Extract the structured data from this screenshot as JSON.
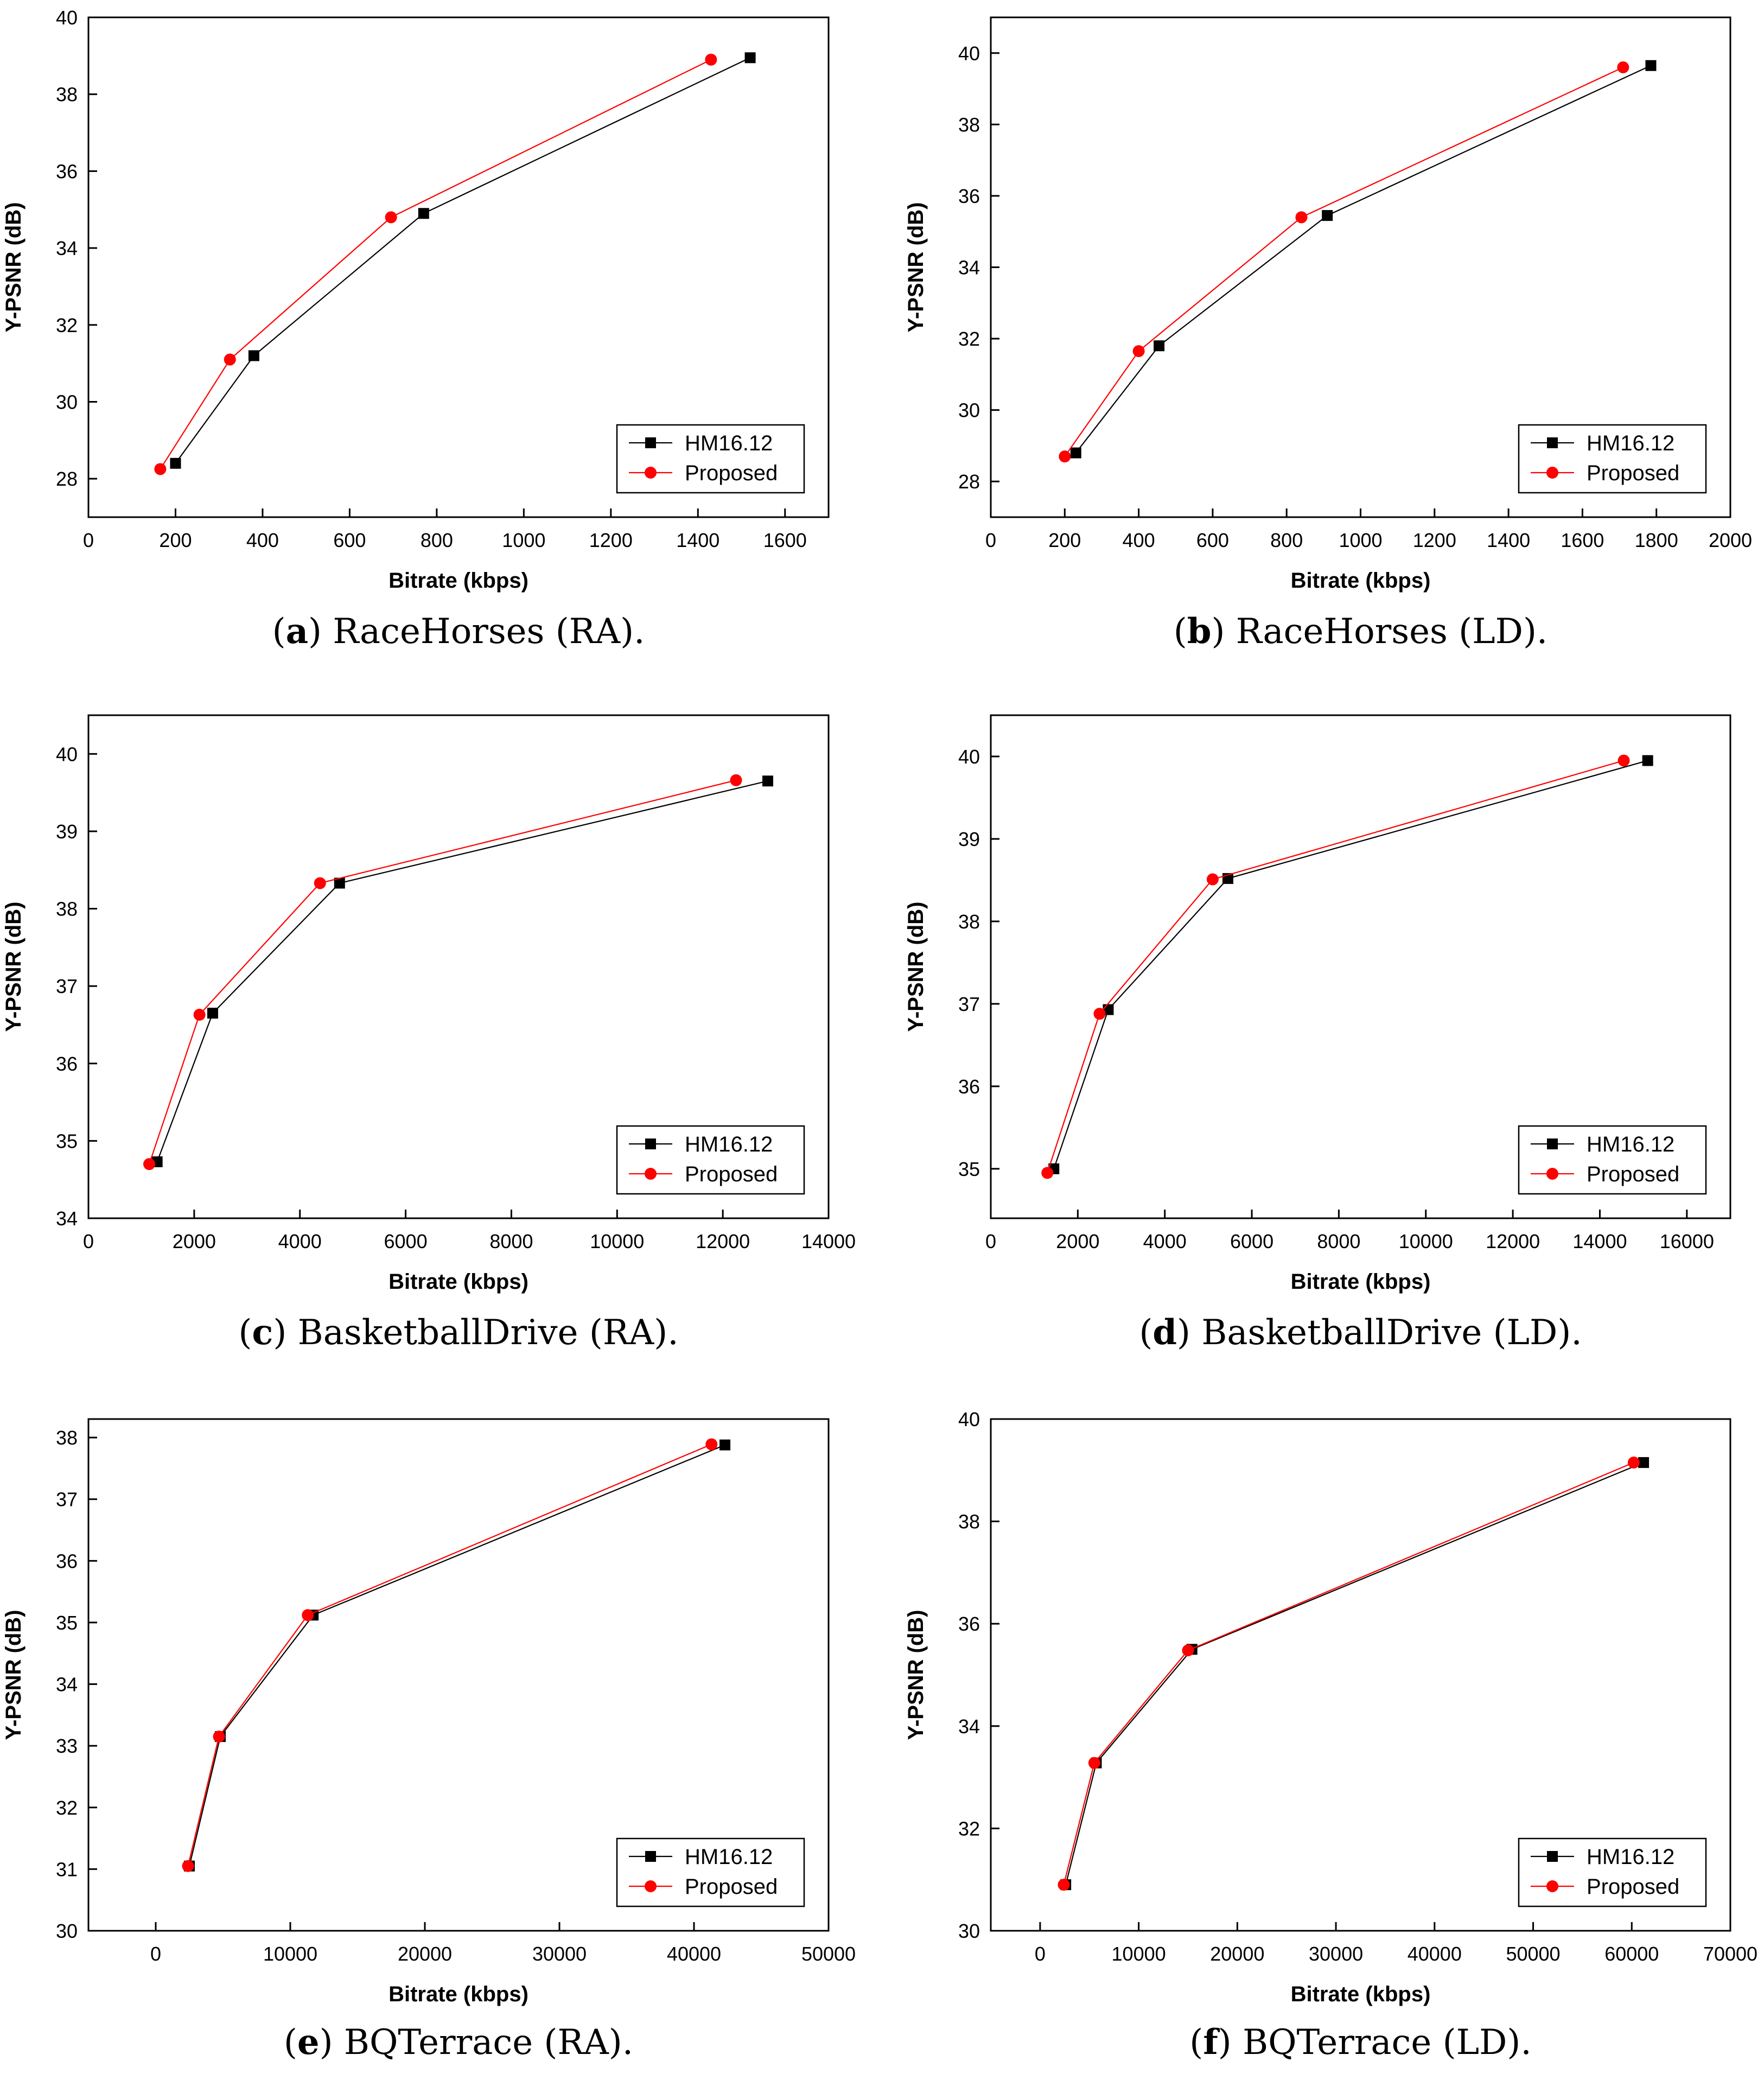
{
  "colors": {
    "hm": "#000000",
    "proposed": "#ff0000",
    "axis": "#000000",
    "background": "#ffffff"
  },
  "legend_labels": [
    "HM16.12",
    "Proposed"
  ],
  "chart_data": [
    {
      "id": "a",
      "type": "line",
      "caption_letter": "a",
      "caption_text": "RaceHorses (RA).",
      "xlabel": "Bitrate (kbps)",
      "ylabel": "Y-PSNR (dB)",
      "xlim": [
        0,
        1700
      ],
      "ylim": [
        27,
        40
      ],
      "xticks": [
        0,
        200,
        400,
        600,
        800,
        1000,
        1200,
        1400,
        1600
      ],
      "yticks": [
        28,
        30,
        32,
        34,
        36,
        38,
        40
      ],
      "legend_position": "bottom-right",
      "series": [
        {
          "name": "HM16.12",
          "marker": "square",
          "x": [
            200,
            380,
            770,
            1520
          ],
          "y": [
            28.4,
            31.2,
            34.9,
            38.95
          ]
        },
        {
          "name": "Proposed",
          "marker": "circle",
          "x": [
            165,
            325,
            695,
            1430
          ],
          "y": [
            28.25,
            31.1,
            34.8,
            38.9
          ]
        }
      ]
    },
    {
      "id": "b",
      "type": "line",
      "caption_letter": "b",
      "caption_text": "RaceHorses (LD).",
      "xlabel": "Bitrate (kbps)",
      "ylabel": "Y-PSNR (dB)",
      "xlim": [
        0,
        2000
      ],
      "ylim": [
        27,
        41
      ],
      "xticks": [
        0,
        200,
        400,
        600,
        800,
        1000,
        1200,
        1400,
        1600,
        1800,
        2000
      ],
      "yticks": [
        28,
        30,
        32,
        34,
        36,
        38,
        40
      ],
      "legend_position": "bottom-right",
      "series": [
        {
          "name": "HM16.12",
          "marker": "square",
          "x": [
            230,
            455,
            910,
            1785
          ],
          "y": [
            28.8,
            31.8,
            35.45,
            39.65
          ]
        },
        {
          "name": "Proposed",
          "marker": "circle",
          "x": [
            200,
            400,
            840,
            1710
          ],
          "y": [
            28.7,
            31.65,
            35.4,
            39.6
          ]
        }
      ]
    },
    {
      "id": "c",
      "type": "line",
      "caption_letter": "c",
      "caption_text": "BasketballDrive (RA).",
      "xlabel": "Bitrate (kbps)",
      "ylabel": "Y-PSNR (dB)",
      "xlim": [
        0,
        14000
      ],
      "ylim": [
        34,
        40.5
      ],
      "xticks": [
        0,
        2000,
        4000,
        6000,
        8000,
        10000,
        12000,
        14000
      ],
      "yticks": [
        34,
        35,
        36,
        37,
        38,
        39,
        40
      ],
      "legend_position": "bottom-right",
      "series": [
        {
          "name": "HM16.12",
          "marker": "square",
          "x": [
            1300,
            2350,
            4750,
            12850
          ],
          "y": [
            34.73,
            36.65,
            38.33,
            39.65
          ]
        },
        {
          "name": "Proposed",
          "marker": "circle",
          "x": [
            1150,
            2100,
            4380,
            12250
          ],
          "y": [
            34.7,
            36.63,
            38.33,
            39.66
          ]
        }
      ]
    },
    {
      "id": "d",
      "type": "line",
      "caption_letter": "d",
      "caption_text": "BasketballDrive (LD).",
      "xlabel": "Bitrate (kbps)",
      "ylabel": "Y-PSNR (dB)",
      "xlim": [
        0,
        17000
      ],
      "ylim": [
        34.4,
        40.5
      ],
      "xticks": [
        0,
        2000,
        4000,
        6000,
        8000,
        10000,
        12000,
        14000,
        16000
      ],
      "yticks": [
        35,
        36,
        37,
        38,
        39,
        40
      ],
      "legend_position": "bottom-right",
      "series": [
        {
          "name": "HM16.12",
          "marker": "square",
          "x": [
            1450,
            2700,
            5450,
            15100
          ],
          "y": [
            35.0,
            36.93,
            38.52,
            39.95
          ]
        },
        {
          "name": "Proposed",
          "marker": "circle",
          "x": [
            1300,
            2500,
            5100,
            14550
          ],
          "y": [
            34.95,
            36.88,
            38.51,
            39.95
          ]
        }
      ]
    },
    {
      "id": "e",
      "type": "line",
      "caption_letter": "e",
      "caption_text": "BQTerrace (RA).",
      "xlabel": "Bitrate (kbps)",
      "ylabel": "Y-PSNR (dB)",
      "xlim": [
        -5000,
        50000
      ],
      "ylim": [
        30,
        38.3
      ],
      "xticks": [
        0,
        10000,
        20000,
        30000,
        40000,
        50000
      ],
      "yticks": [
        30,
        31,
        32,
        33,
        34,
        35,
        36,
        37,
        38
      ],
      "legend_position": "bottom-right",
      "series": [
        {
          "name": "HM16.12",
          "marker": "square",
          "x": [
            2500,
            4800,
            11700,
            42300
          ],
          "y": [
            31.05,
            33.15,
            35.12,
            37.88
          ]
        },
        {
          "name": "Proposed",
          "marker": "circle",
          "x": [
            2400,
            4700,
            11300,
            41300
          ],
          "y": [
            31.05,
            33.15,
            35.12,
            37.89
          ]
        }
      ]
    },
    {
      "id": "f",
      "type": "line",
      "caption_letter": "f",
      "caption_text": "BQTerrace (LD).",
      "xlabel": "Bitrate (kbps)",
      "ylabel": "Y-PSNR (dB)",
      "xlim": [
        -5000,
        70000
      ],
      "ylim": [
        30,
        40
      ],
      "xticks": [
        0,
        10000,
        20000,
        30000,
        40000,
        50000,
        60000,
        70000
      ],
      "yticks": [
        30,
        32,
        34,
        36,
        38,
        40
      ],
      "legend_position": "bottom-right",
      "series": [
        {
          "name": "HM16.12",
          "marker": "square",
          "x": [
            2600,
            5700,
            15400,
            61200
          ],
          "y": [
            30.9,
            33.28,
            35.5,
            39.15
          ]
        },
        {
          "name": "Proposed",
          "marker": "circle",
          "x": [
            2400,
            5500,
            15000,
            60200
          ],
          "y": [
            30.9,
            33.28,
            35.48,
            39.15
          ]
        }
      ]
    }
  ]
}
